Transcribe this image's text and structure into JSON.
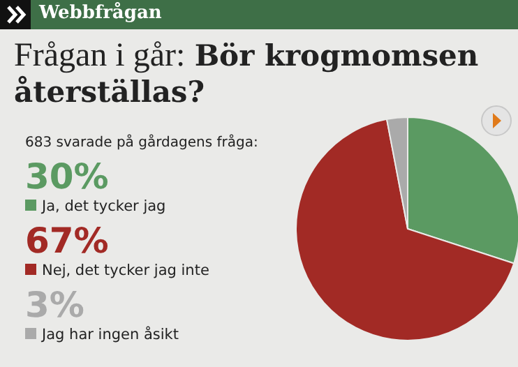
{
  "chart_data": {
    "type": "pie",
    "title": "Webbfrågan",
    "annotations": [
      "Frågan i går:",
      "Bör krogmomsen återställas?",
      "683 svarade på gårdagens fråga:"
    ],
    "categories": [
      "Ja, det tycker jag",
      "Nej, det tycker jag inte",
      "Jag har ingen åsikt"
    ],
    "values": [
      30,
      67,
      3
    ],
    "value_labels": [
      "30%",
      "67%",
      "3%"
    ],
    "colors": [
      "#5b9a62",
      "#a22a25",
      "#aaaaaa"
    ],
    "legend": "left"
  }
}
